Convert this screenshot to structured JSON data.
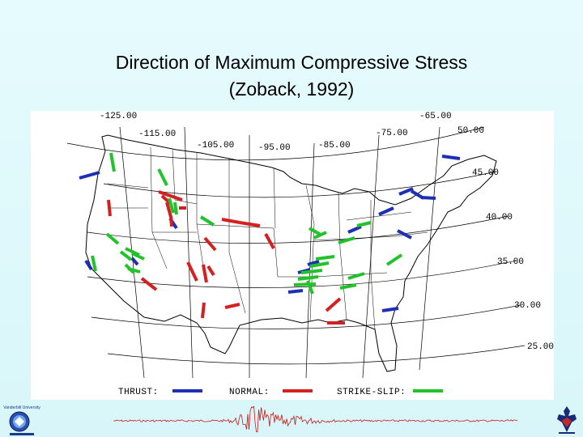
{
  "slide": {
    "title_line1": "Direction of Maximum Compressive Stress",
    "title_line2": "(Zoback, 1992)"
  },
  "map": {
    "longitude_labels": [
      "-125.00",
      "-115.00",
      "-105.00",
      "-95.00",
      "-85.00",
      "-75.00",
      "-65.00"
    ],
    "latitude_labels": [
      "50.00",
      "45.00",
      "40.00",
      "35.00",
      "30.00",
      "25.00"
    ],
    "legend": [
      {
        "label": "THRUST:",
        "color": "#1f2fb4"
      },
      {
        "label": "NORMAL:",
        "color": "#d42020"
      },
      {
        "label": "STRIKE-SLIP:",
        "color": "#22c32a"
      }
    ]
  },
  "logos": {
    "left_logo_text": "Vanderbilt University"
  },
  "colors": {
    "thrust": "#1f2fb4",
    "normal": "#d42020",
    "strike_slip": "#22c32a",
    "seismogram": "#c81818"
  }
}
